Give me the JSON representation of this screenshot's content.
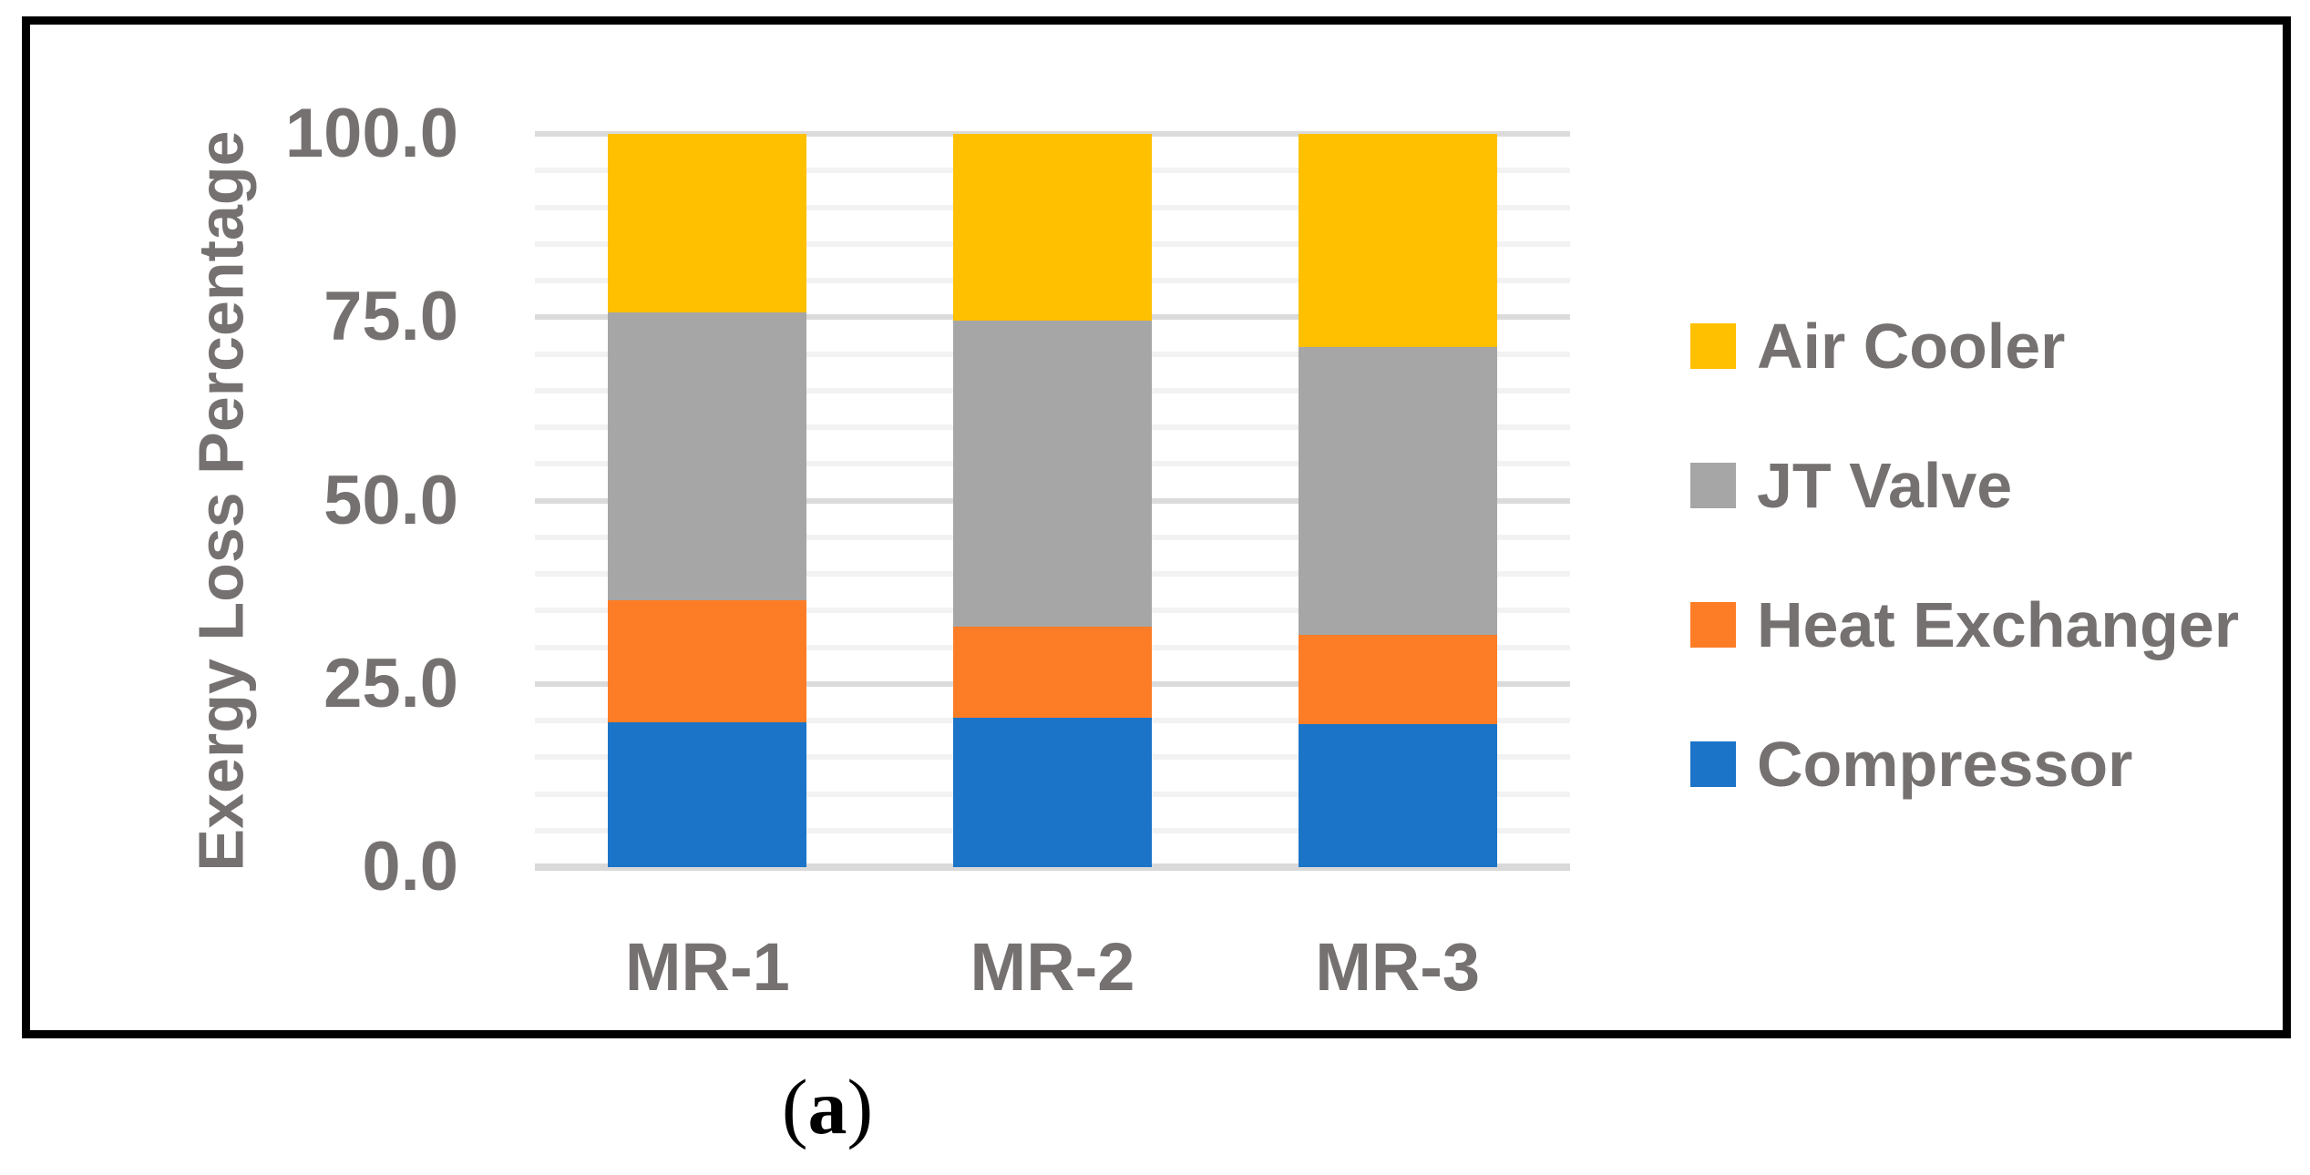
{
  "figure": {
    "caption": {
      "open": "(",
      "letter": "a",
      "close": ")"
    }
  },
  "chart_data": {
    "type": "bar",
    "stacked": true,
    "title": "",
    "xlabel": "",
    "ylabel": "Exergy Loss Percentage",
    "ylim": [
      0,
      100
    ],
    "categories": [
      "MR-1",
      "MR-2",
      "MR-3"
    ],
    "series": [
      {
        "name": "Compressor",
        "color": "#1B74C7",
        "values": [
          19.8,
          20.4,
          19.5
        ]
      },
      {
        "name": "Heat Exchanger",
        "color": "#FD7D27",
        "values": [
          16.6,
          12.4,
          12.2
        ]
      },
      {
        "name": "JT Valve",
        "color": "#A6A6A6",
        "values": [
          39.3,
          41.7,
          39.2
        ]
      },
      {
        "name": "Air Cooler",
        "color": "#FFC000",
        "values": [
          24.3,
          25.5,
          29.1
        ]
      }
    ],
    "yticks": [
      {
        "value": 100,
        "label": "100.0"
      },
      {
        "value": 75,
        "label": "75.0"
      },
      {
        "value": 50,
        "label": "50.0"
      },
      {
        "value": 25,
        "label": "25.0"
      },
      {
        "value": 0,
        "label": "0.0"
      }
    ],
    "grid": {
      "major_interval": 25,
      "minor_interval": 5,
      "grid_on": true
    },
    "legend": {
      "position": "right",
      "order": [
        "Air Cooler",
        "JT Valve",
        "Heat Exchanger",
        "Compressor"
      ]
    },
    "colors": {
      "axis_text": "#767171",
      "major_grid": "#DBDBDB",
      "minor_grid": "#F2F2F2",
      "axis_line": "#D9D9D9",
      "frame_border": "#000000"
    }
  }
}
